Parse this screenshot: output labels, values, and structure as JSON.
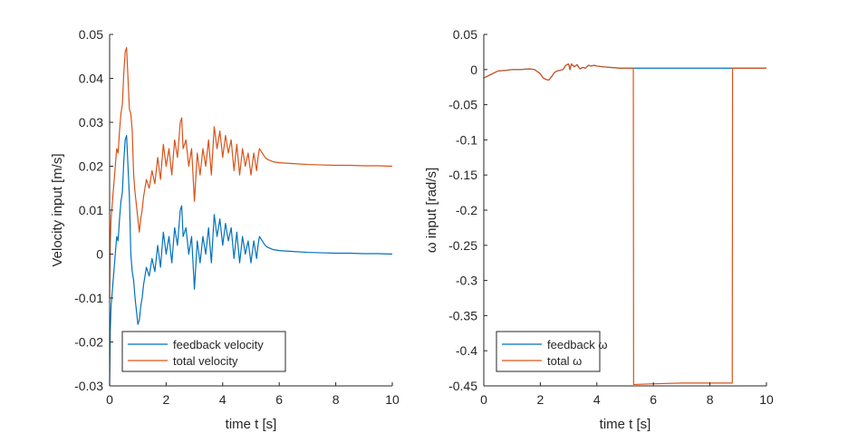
{
  "chart_data": [
    {
      "type": "line",
      "xlabel": "time t [s]",
      "ylabel": "Velocity input [m/s]",
      "xlim": [
        0,
        10
      ],
      "ylim": [
        -0.03,
        0.05
      ],
      "xticks": [
        0,
        2,
        4,
        6,
        8,
        10
      ],
      "yticks": [
        -0.03,
        -0.02,
        -0.01,
        0,
        0.01,
        0.02,
        0.03,
        0.04,
        0.05
      ],
      "xtick_labels": [
        "0",
        "2",
        "4",
        "6",
        "8",
        "10"
      ],
      "ytick_labels": [
        "-0.03",
        "-0.02",
        "-0.01",
        "0",
        "0.01",
        "0.02",
        "0.03",
        "0.04",
        "0.05"
      ],
      "grid": false,
      "legend_position": "bottom-left",
      "series": [
        {
          "name": "feedback velocity",
          "color": "#0072BD",
          "x": [
            0,
            0.02,
            0.05,
            0.1,
            0.15,
            0.2,
            0.25,
            0.3,
            0.35,
            0.4,
            0.45,
            0.5,
            0.55,
            0.6,
            0.65,
            0.7,
            0.75,
            0.8,
            0.85,
            0.9,
            0.95,
            1.0,
            1.05,
            1.1,
            1.15,
            1.2,
            1.3,
            1.4,
            1.5,
            1.6,
            1.7,
            1.8,
            1.9,
            2.0,
            2.1,
            2.2,
            2.3,
            2.4,
            2.5,
            2.55,
            2.6,
            2.7,
            2.8,
            2.9,
            3.0,
            3.1,
            3.2,
            3.3,
            3.4,
            3.5,
            3.6,
            3.7,
            3.8,
            3.9,
            4.0,
            4.1,
            4.2,
            4.3,
            4.4,
            4.5,
            4.6,
            4.7,
            4.8,
            4.9,
            5.0,
            5.1,
            5.2,
            5.25,
            5.3,
            5.4,
            5.5,
            5.6,
            5.8,
            6.0,
            6.5,
            7.0,
            7.5,
            8.0,
            8.5,
            9.0,
            9.5,
            10.0
          ],
          "values": [
            -0.03,
            -0.018,
            -0.012,
            -0.008,
            -0.004,
            0.0,
            0.004,
            0.003,
            0.008,
            0.012,
            0.014,
            0.021,
            0.026,
            0.027,
            0.02,
            0.013,
            0.0,
            -0.004,
            -0.006,
            -0.01,
            -0.013,
            -0.016,
            -0.015,
            -0.012,
            -0.01,
            -0.007,
            -0.003,
            -0.005,
            -0.001,
            -0.004,
            0.002,
            -0.003,
            0.005,
            0.0,
            0.004,
            -0.002,
            0.006,
            0.002,
            0.01,
            0.011,
            0.004,
            0.006,
            0.0,
            0.004,
            -0.008,
            0.003,
            -0.002,
            0.004,
            0.0,
            0.006,
            -0.002,
            0.009,
            0.004,
            0.008,
            0.002,
            0.007,
            0.003,
            0.006,
            -0.001,
            0.005,
            -0.002,
            0.004,
            0.0,
            0.003,
            -0.002,
            0.003,
            -0.001,
            0.002,
            0.004,
            0.003,
            0.002,
            0.0015,
            0.001,
            0.0008,
            0.0006,
            0.0004,
            0.0003,
            0.0002,
            0.0002,
            0.0001,
            0.0001,
            0.0
          ]
        },
        {
          "name": "total velocity",
          "color": "#D95319",
          "x": [
            0,
            0.02,
            0.05,
            0.1,
            0.15,
            0.2,
            0.25,
            0.3,
            0.35,
            0.4,
            0.45,
            0.5,
            0.55,
            0.6,
            0.65,
            0.7,
            0.75,
            0.8,
            0.85,
            0.9,
            0.95,
            1.0,
            1.05,
            1.1,
            1.15,
            1.2,
            1.3,
            1.4,
            1.5,
            1.6,
            1.7,
            1.8,
            1.9,
            2.0,
            2.1,
            2.2,
            2.3,
            2.4,
            2.5,
            2.55,
            2.6,
            2.7,
            2.8,
            2.9,
            3.0,
            3.1,
            3.2,
            3.3,
            3.4,
            3.5,
            3.6,
            3.7,
            3.8,
            3.9,
            4.0,
            4.1,
            4.2,
            4.3,
            4.4,
            4.5,
            4.6,
            4.7,
            4.8,
            4.9,
            5.0,
            5.1,
            5.2,
            5.25,
            5.3,
            5.4,
            5.5,
            5.6,
            5.8,
            6.0,
            6.5,
            7.0,
            7.5,
            8.0,
            8.5,
            9.0,
            9.5,
            10.0
          ],
          "values": [
            -0.01,
            0.002,
            0.008,
            0.012,
            0.016,
            0.02,
            0.024,
            0.023,
            0.028,
            0.032,
            0.034,
            0.041,
            0.046,
            0.047,
            0.04,
            0.033,
            0.032,
            0.028,
            0.018,
            0.014,
            0.011,
            0.008,
            0.005,
            0.008,
            0.01,
            0.013,
            0.017,
            0.015,
            0.019,
            0.016,
            0.022,
            0.017,
            0.025,
            0.02,
            0.024,
            0.018,
            0.026,
            0.022,
            0.03,
            0.031,
            0.024,
            0.026,
            0.02,
            0.024,
            0.012,
            0.023,
            0.018,
            0.024,
            0.02,
            0.026,
            0.018,
            0.029,
            0.024,
            0.028,
            0.022,
            0.027,
            0.023,
            0.026,
            0.019,
            0.025,
            0.018,
            0.024,
            0.02,
            0.023,
            0.018,
            0.023,
            0.019,
            0.022,
            0.024,
            0.023,
            0.022,
            0.0215,
            0.021,
            0.0208,
            0.0206,
            0.0204,
            0.0203,
            0.0202,
            0.0202,
            0.0201,
            0.0201,
            0.02
          ]
        }
      ]
    },
    {
      "type": "line",
      "xlabel": "time t [s]",
      "ylabel": "ω input [rad/s]",
      "xlim": [
        0,
        10
      ],
      "ylim": [
        -0.45,
        0.05
      ],
      "xticks": [
        0,
        2,
        4,
        6,
        8,
        10
      ],
      "yticks": [
        -0.45,
        -0.4,
        -0.35,
        -0.3,
        -0.25,
        -0.2,
        -0.15,
        -0.1,
        -0.05,
        0,
        0.05
      ],
      "xtick_labels": [
        "0",
        "2",
        "4",
        "6",
        "8",
        "10"
      ],
      "ytick_labels": [
        "-0.45",
        "-0.4",
        "-0.35",
        "-0.3",
        "-0.25",
        "-0.2",
        "-0.15",
        "-0.1",
        "-0.05",
        "0",
        "0.05"
      ],
      "grid": false,
      "legend_position": "bottom-left",
      "series": [
        {
          "name": "feedback ω",
          "color": "#0072BD",
          "x": [
            0,
            0.1,
            0.3,
            0.5,
            0.8,
            1.0,
            1.3,
            1.6,
            1.8,
            2.0,
            2.1,
            2.2,
            2.3,
            2.4,
            2.5,
            2.6,
            2.8,
            2.9,
            3.0,
            3.05,
            3.1,
            3.2,
            3.3,
            3.4,
            3.5,
            3.6,
            3.7,
            3.8,
            3.9,
            4.0,
            4.2,
            4.5,
            4.8,
            5.0,
            5.3,
            6.0,
            7.0,
            8.0,
            8.8,
            9.0,
            10.0
          ],
          "values": [
            -0.012,
            -0.01,
            -0.006,
            -0.002,
            -0.001,
            0.0,
            0.0,
            0.001,
            0.0,
            -0.006,
            -0.012,
            -0.014,
            -0.015,
            -0.01,
            -0.004,
            -0.002,
            0.0,
            0.006,
            0.008,
            0.0,
            0.008,
            0.004,
            0.007,
            0.001,
            0.003,
            0.002,
            0.006,
            0.005,
            0.006,
            0.005,
            0.004,
            0.003,
            0.002,
            0.002,
            0.002,
            0.002,
            0.002,
            0.002,
            0.002,
            0.002,
            0.002
          ]
        },
        {
          "name": "total ω",
          "color": "#D95319",
          "x": [
            0,
            0.1,
            0.3,
            0.5,
            0.8,
            1.0,
            1.3,
            1.6,
            1.8,
            2.0,
            2.1,
            2.2,
            2.3,
            2.4,
            2.5,
            2.6,
            2.8,
            2.9,
            3.0,
            3.05,
            3.1,
            3.2,
            3.3,
            3.4,
            3.5,
            3.6,
            3.7,
            3.8,
            3.9,
            4.0,
            4.2,
            4.5,
            4.8,
            5.0,
            5.29,
            5.3,
            6.0,
            7.0,
            8.0,
            8.79,
            8.8,
            9.0,
            10.0
          ],
          "values": [
            -0.012,
            -0.01,
            -0.006,
            -0.002,
            -0.001,
            0.0,
            0.0,
            0.001,
            0.0,
            -0.006,
            -0.012,
            -0.014,
            -0.015,
            -0.01,
            -0.004,
            -0.002,
            0.0,
            0.006,
            0.008,
            0.0,
            0.008,
            0.004,
            0.007,
            0.001,
            0.003,
            0.002,
            0.006,
            0.005,
            0.006,
            0.005,
            0.004,
            0.003,
            0.002,
            0.002,
            0.002,
            -0.448,
            -0.447,
            -0.446,
            -0.446,
            -0.446,
            0.002,
            0.002,
            0.002
          ]
        }
      ]
    }
  ]
}
